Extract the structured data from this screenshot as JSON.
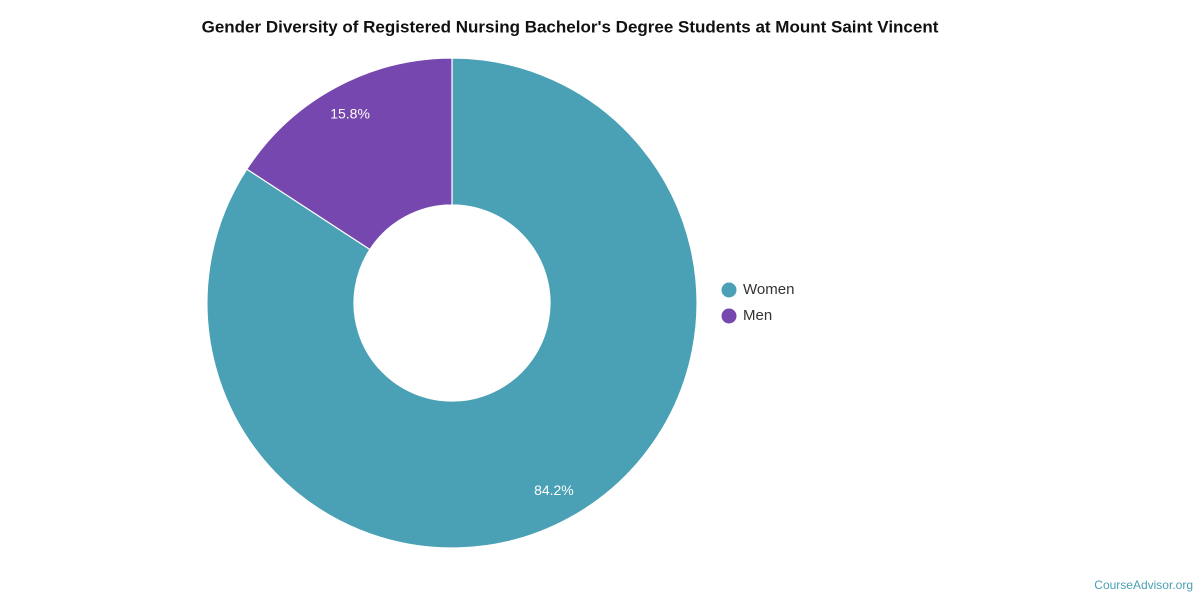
{
  "chart_data": {
    "type": "donut",
    "title": "Gender Diversity of Registered Nursing Bachelor's Degree Students at Mount Saint Vincent",
    "categories": [
      "Women",
      "Men"
    ],
    "values": [
      84.2,
      15.8
    ],
    "value_labels": [
      "84.2%",
      "15.8%"
    ],
    "colors": [
      "#4aa0b4",
      "#7647ae"
    ],
    "legend": "right",
    "credit": "CourseAdvisor.org"
  }
}
